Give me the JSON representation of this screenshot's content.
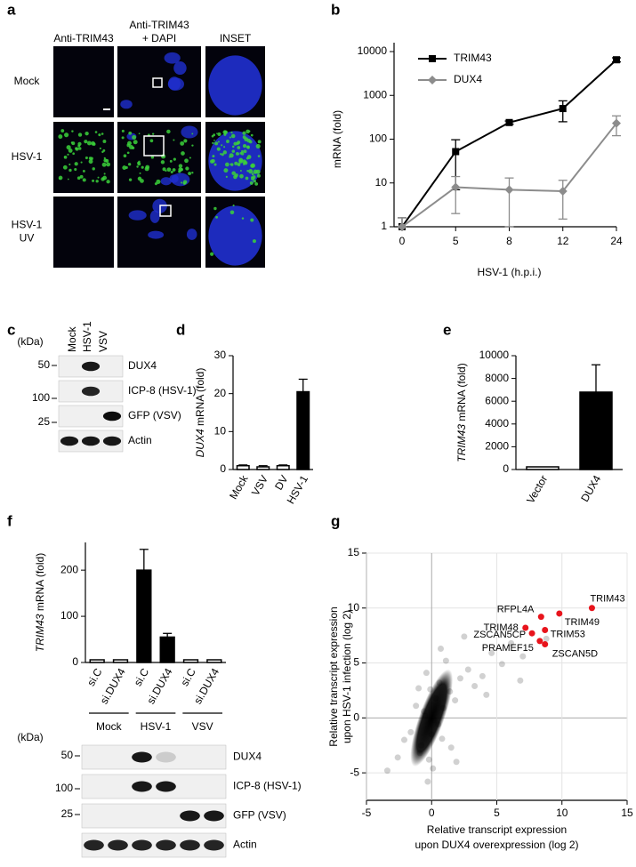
{
  "figure": {
    "panel_a": {
      "label": "a",
      "columns": [
        [
          "Anti-TRIM43"
        ],
        [
          "Anti-TRIM43",
          "+ DAPI"
        ],
        [
          "INSET"
        ]
      ],
      "rows": [
        [
          "Mock"
        ],
        [
          "HSV-1"
        ],
        [
          "HSV-1",
          "UV"
        ]
      ]
    },
    "panel_c": {
      "label": "c",
      "lanes": [
        "Mock",
        "HSV-1",
        "VSV"
      ],
      "unit": "(kDa)",
      "markers": [
        50,
        100,
        25
      ],
      "bands": [
        "DUX4",
        "ICP-8 (HSV-1)",
        "GFP (VSV)",
        "Actin"
      ]
    },
    "panel_f_blot": {
      "unit": "(kDa)",
      "markers": [
        50,
        100,
        25
      ],
      "bands": [
        "DUX4",
        "ICP-8 (HSV-1)",
        "GFP (VSV)",
        "Actin"
      ]
    }
  },
  "chart_data": [
    {
      "type": "line",
      "panel": "b",
      "ylabel": "mRNA (fold)",
      "xlabel": "HSV-1 (h.p.i.)",
      "categories": [
        "0",
        "5",
        "8",
        "12",
        "24"
      ],
      "log_y": true,
      "ylim": [
        1,
        10000
      ],
      "yticks": [
        1,
        10,
        100,
        1000,
        10000
      ],
      "series": [
        {
          "name": "TRIM43",
          "color": "#000000",
          "marker": "square",
          "values": [
            1,
            52,
            240,
            500,
            6500
          ],
          "errors": [
            0.6,
            45,
            20,
            250,
            700
          ]
        },
        {
          "name": "DUX4",
          "color": "#8c8c8c",
          "marker": "diamond",
          "values": [
            1,
            8,
            7,
            6.5,
            230
          ],
          "errors": [
            0.6,
            6,
            6,
            5,
            110
          ]
        }
      ]
    },
    {
      "type": "bar",
      "panel": "d",
      "ylabel_gene": "DUX4",
      "ylabel": "mRNA (fold)",
      "categories": [
        "Mock",
        "VSV",
        "DV",
        "HSV-1"
      ],
      "values": [
        1,
        0.7,
        1,
        20.5
      ],
      "errors": [
        0.2,
        0.3,
        0.2,
        3.3
      ],
      "colors": [
        "#ffffff",
        "#ffffff",
        "#ffffff",
        "#000000"
      ],
      "ylim": [
        0,
        30
      ],
      "yticks": [
        0,
        10,
        20,
        30
      ]
    },
    {
      "type": "bar",
      "panel": "e",
      "ylabel_gene": "TRIM43",
      "ylabel": "mRNA (fold)",
      "categories": [
        "Vector",
        "DUX4"
      ],
      "values": [
        0,
        6800
      ],
      "errors": [
        0,
        2400
      ],
      "colors": [
        "#ffffff",
        "#000000"
      ],
      "ylim": [
        0,
        10000
      ],
      "yticks": [
        0,
        2000,
        4000,
        6000,
        8000,
        10000
      ]
    },
    {
      "type": "bar",
      "panel": "f",
      "ylabel_gene": "TRIM43",
      "ylabel": "mRNA (fold)",
      "categories": [
        "si.C",
        "si.DUX4",
        "si.C",
        "si.DUX4",
        "si.C",
        "si.DUX4"
      ],
      "groups": [
        "Mock",
        "HSV-1",
        "VSV"
      ],
      "values": [
        1,
        1,
        200,
        55,
        2,
        1
      ],
      "errors": [
        1,
        1,
        45,
        8,
        2,
        1
      ],
      "colors": [
        "#ffffff",
        "#ffffff",
        "#000000",
        "#000000",
        "#ffffff",
        "#ffffff"
      ],
      "ylim": [
        0,
        260
      ],
      "yticks": [
        0,
        100,
        200
      ]
    },
    {
      "type": "scatter",
      "panel": "g",
      "grid": true,
      "xlabel": [
        "Relative transcript expression",
        "upon DUX4 overexpression (log 2)"
      ],
      "ylabel": [
        "Relative transcript expression",
        "upon HSV-1 infection (log 2)"
      ],
      "xlim": [
        -5,
        15
      ],
      "xticks": [
        -5,
        0,
        5,
        10,
        15
      ],
      "ylim": [
        -7.5,
        15
      ],
      "yticks": [
        -5,
        0,
        5,
        10,
        15
      ],
      "points": {
        "x": [
          -0.5,
          0,
          0.3,
          -0.8,
          0.6,
          -0.2,
          0.9,
          -1.2,
          1.4,
          0.1,
          -0.4,
          1.8,
          2.2,
          -1.6,
          0.5,
          -0.9,
          2.8,
          3.3,
          -2.1,
          1.1,
          3.9,
          4.6,
          -0.3,
          0.7,
          5.4,
          6.1,
          -2.6,
          1.5,
          7.0,
          -1.0,
          0.2,
          2.5,
          -0.6,
          4.2,
          8.8,
          -3.4,
          0.8,
          -0.1,
          1.9,
          6.8
        ],
        "y": [
          0.2,
          -1.5,
          1.8,
          -2.5,
          3.2,
          -3.8,
          0.9,
          1.1,
          2.4,
          -4.6,
          4.1,
          1.6,
          3.6,
          -1.3,
          -0.6,
          -3.2,
          4.4,
          2.9,
          -2.0,
          5.2,
          3.8,
          5.9,
          -5.8,
          6.3,
          4.9,
          6.8,
          -3.6,
          -2.7,
          5.6,
          2.7,
          -0.2,
          7.4,
          0.6,
          2.1,
          7.2,
          -4.8,
          -1.9,
          2.6,
          -4.0,
          3.4
        ]
      },
      "highlight_color": "#e8141c",
      "highlights": [
        {
          "label": "TRIM43",
          "x": 12.3,
          "y": 10
        },
        {
          "label": "TRIM49",
          "x": 9.8,
          "y": 9.5
        },
        {
          "label": "RFPL4A",
          "x": 8.4,
          "y": 9.2
        },
        {
          "label": "TRIM48",
          "x": 7.2,
          "y": 8.2
        },
        {
          "label": "TRIM53",
          "x": 8.7,
          "y": 8.0
        },
        {
          "label": "ZSCAN5CP",
          "x": 7.7,
          "y": 7.7
        },
        {
          "label": "PRAMEF15",
          "x": 8.3,
          "y": 7.0
        },
        {
          "label": "ZSCAN5D",
          "x": 8.7,
          "y": 6.7
        }
      ]
    }
  ]
}
